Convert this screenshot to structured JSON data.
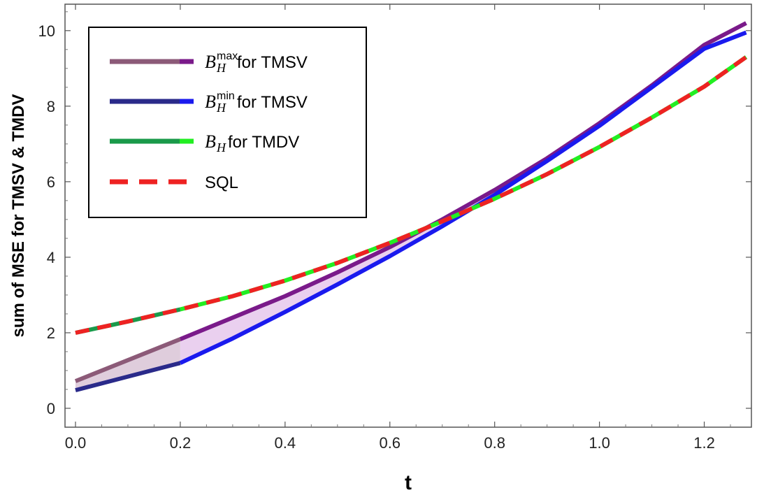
{
  "chart_data": {
    "type": "line",
    "xlabel": "t",
    "ylabel": "sum of MSE for TMSV & TMDV",
    "xlim": [
      -0.02,
      1.29
    ],
    "ylim": [
      -0.5,
      10.7
    ],
    "xticks": [
      "0.0",
      "0.2",
      "0.4",
      "0.6",
      "0.8",
      "1.0",
      "1.2"
    ],
    "yticks": [
      "0",
      "2",
      "4",
      "6",
      "8",
      "10"
    ],
    "grid": false,
    "legend_position": "top-left",
    "legend": [
      {
        "symbol": "B",
        "sub": "H",
        "sup": "max",
        "text": " for TMSV",
        "key": "bmax"
      },
      {
        "symbol": "B",
        "sub": "H",
        "sup": "min",
        "text": " for TMSV",
        "key": "bmin"
      },
      {
        "symbol": "B",
        "sub": "H",
        "sup": "",
        "text": " for TMDV",
        "key": "bh"
      },
      {
        "symbol": "",
        "sub": "",
        "sup": "",
        "text": "SQL",
        "key": "sql"
      }
    ],
    "series": [
      {
        "key": "bmax",
        "colors": [
          "#8c5a78",
          "#7a1a8a"
        ],
        "x": [
          0.0,
          0.2,
          0.3,
          0.4,
          0.5,
          0.6,
          0.7,
          0.8,
          0.9,
          1.0,
          1.1,
          1.2,
          1.28
        ],
        "y": [
          0.72,
          1.83,
          2.4,
          2.97,
          3.6,
          4.27,
          5.0,
          5.78,
          6.62,
          7.55,
          8.55,
          9.62,
          10.2
        ]
      },
      {
        "key": "bmin",
        "colors": [
          "#2a2a8a",
          "#1a1aee"
        ],
        "x": [
          0.0,
          0.2,
          0.3,
          0.4,
          0.5,
          0.6,
          0.7,
          0.8,
          0.9,
          1.0,
          1.1,
          1.2,
          1.28
        ],
        "y": [
          0.48,
          1.2,
          1.85,
          2.55,
          3.28,
          4.03,
          4.82,
          5.65,
          6.55,
          7.48,
          8.5,
          9.52,
          9.95
        ]
      },
      {
        "key": "bh",
        "colors": [
          "#1a9a4a",
          "#22ee22"
        ],
        "x": [
          0.0,
          0.1,
          0.2,
          0.3,
          0.4,
          0.5,
          0.6,
          0.7,
          0.8,
          0.9,
          1.0,
          1.1,
          1.2,
          1.28
        ],
        "y": [
          2.0,
          2.3,
          2.62,
          2.97,
          3.38,
          3.85,
          4.38,
          4.95,
          5.55,
          6.2,
          6.92,
          7.7,
          8.52,
          9.3
        ]
      },
      {
        "key": "sql",
        "colors": [
          "#ee2222"
        ],
        "dashed": true,
        "x": [
          0.0,
          0.1,
          0.2,
          0.3,
          0.4,
          0.5,
          0.6,
          0.7,
          0.8,
          0.9,
          1.0,
          1.1,
          1.2,
          1.28
        ],
        "y": [
          2.0,
          2.3,
          2.62,
          2.97,
          3.38,
          3.85,
          4.38,
          4.95,
          5.55,
          6.2,
          6.92,
          7.7,
          8.52,
          9.3
        ]
      }
    ],
    "shaded_regions": [
      {
        "between": [
          "bmax",
          "bmin"
        ],
        "x_from": 0.0,
        "x_to": 0.2,
        "color": "#d9c4d6"
      },
      {
        "between": [
          "bmax",
          "bmin"
        ],
        "x_from": 0.2,
        "x_to": 0.86,
        "color": "#e6c8ec"
      }
    ]
  }
}
